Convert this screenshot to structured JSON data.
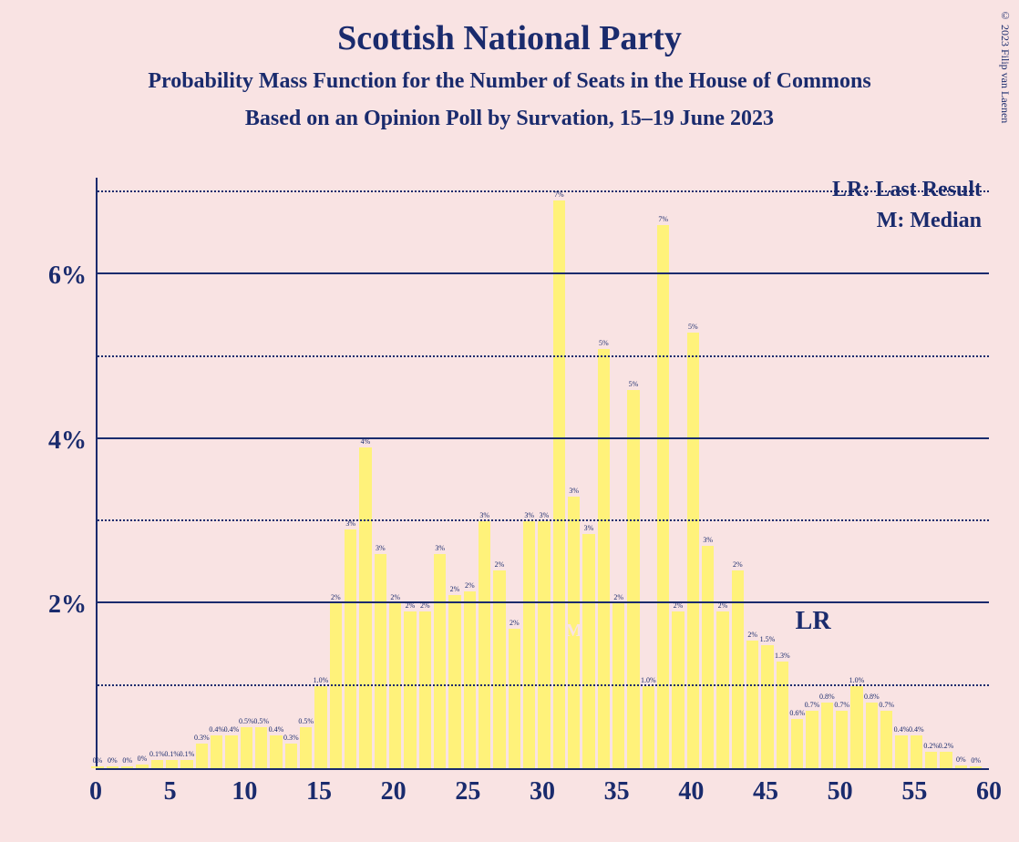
{
  "copyright": "© 2023 Filip van Laenen",
  "title": {
    "text": "Scottish National Party",
    "fontsize": 38
  },
  "subtitle": {
    "text": "Probability Mass Function for the Number of Seats in the House of Commons",
    "fontsize": 24
  },
  "subtitle2": {
    "text": "Based on an Opinion Poll by Survation, 15–19 June 2023",
    "fontsize": 24
  },
  "legend": {
    "lr": "LR: Last Result",
    "m": "M: Median",
    "fontsize": 24
  },
  "chart": {
    "type": "bar",
    "background_color": "#f9e3e3",
    "bar_color": "#fff27a",
    "axis_color": "#1a2b6d",
    "text_color": "#1a2b6d",
    "x": {
      "min": 0,
      "max": 60,
      "ticks": [
        0,
        5,
        10,
        15,
        20,
        25,
        30,
        35,
        40,
        45,
        50,
        55,
        60
      ],
      "tick_fontsize": 28
    },
    "y": {
      "min": 0,
      "max": 7.2,
      "solid_lines": [
        2,
        4,
        6
      ],
      "dotted_lines": [
        1,
        3,
        5,
        7
      ],
      "tick_labels": {
        "2": "2%",
        "4": "4%",
        "6": "6%"
      },
      "tick_fontsize": 28
    },
    "bar_width_ratio": 0.82,
    "bar_label_fontsize": 8,
    "bars": [
      {
        "x": 0,
        "v": 0.02,
        "label": "0%"
      },
      {
        "x": 1,
        "v": 0.02,
        "label": "0%"
      },
      {
        "x": 2,
        "v": 0.02,
        "label": "0%"
      },
      {
        "x": 3,
        "v": 0.05,
        "label": "0%"
      },
      {
        "x": 4,
        "v": 0.1,
        "label": "0.1%"
      },
      {
        "x": 5,
        "v": 0.1,
        "label": "0.1%"
      },
      {
        "x": 6,
        "v": 0.1,
        "label": "0.1%"
      },
      {
        "x": 7,
        "v": 0.3,
        "label": "0.3%"
      },
      {
        "x": 8,
        "v": 0.4,
        "label": "0.4%"
      },
      {
        "x": 9,
        "v": 0.4,
        "label": "0.4%"
      },
      {
        "x": 10,
        "v": 0.5,
        "label": "0.5%"
      },
      {
        "x": 11,
        "v": 0.5,
        "label": "0.5%"
      },
      {
        "x": 12,
        "v": 0.4,
        "label": "0.4%"
      },
      {
        "x": 13,
        "v": 0.3,
        "label": "0.3%"
      },
      {
        "x": 14,
        "v": 0.5,
        "label": "0.5%"
      },
      {
        "x": 15,
        "v": 1.0,
        "label": "1.0%"
      },
      {
        "x": 16,
        "v": 2.0,
        "label": "2%"
      },
      {
        "x": 17,
        "v": 2.9,
        "label": "3%"
      },
      {
        "x": 18,
        "v": 3.9,
        "label": "4%"
      },
      {
        "x": 19,
        "v": 2.6,
        "label": "3%"
      },
      {
        "x": 20,
        "v": 2.0,
        "label": "2%"
      },
      {
        "x": 21,
        "v": 1.9,
        "label": "2%"
      },
      {
        "x": 22,
        "v": 1.9,
        "label": "2%"
      },
      {
        "x": 23,
        "v": 2.6,
        "label": "3%"
      },
      {
        "x": 24,
        "v": 2.1,
        "label": "2%"
      },
      {
        "x": 25,
        "v": 2.15,
        "label": "2%"
      },
      {
        "x": 26,
        "v": 3.0,
        "label": "3%"
      },
      {
        "x": 27,
        "v": 2.4,
        "label": "2%"
      },
      {
        "x": 28,
        "v": 1.7,
        "label": "2%"
      },
      {
        "x": 29,
        "v": 3.0,
        "label": "3%"
      },
      {
        "x": 30,
        "v": 3.0,
        "label": "3%"
      },
      {
        "x": 31,
        "v": 6.9,
        "label": "7%"
      },
      {
        "x": 32,
        "v": 3.3,
        "label": "3%"
      },
      {
        "x": 33,
        "v": 2.85,
        "label": "3%"
      },
      {
        "x": 34,
        "v": 5.1,
        "label": "5%"
      },
      {
        "x": 35,
        "v": 2.0,
        "label": "2%"
      },
      {
        "x": 36,
        "v": 4.6,
        "label": "5%"
      },
      {
        "x": 37,
        "v": 1.0,
        "label": "1.0%"
      },
      {
        "x": 38,
        "v": 6.6,
        "label": "7%"
      },
      {
        "x": 39,
        "v": 1.9,
        "label": "2%"
      },
      {
        "x": 40,
        "v": 5.3,
        "label": "5%"
      },
      {
        "x": 41,
        "v": 2.7,
        "label": "3%"
      },
      {
        "x": 42,
        "v": 1.9,
        "label": "2%"
      },
      {
        "x": 43,
        "v": 2.4,
        "label": "2%"
      },
      {
        "x": 44,
        "v": 1.55,
        "label": "2%"
      },
      {
        "x": 45,
        "v": 1.5,
        "label": "1.5%"
      },
      {
        "x": 46,
        "v": 1.3,
        "label": "1.3%"
      },
      {
        "x": 47,
        "v": 0.6,
        "label": "0.6%"
      },
      {
        "x": 48,
        "v": 0.7,
        "label": "0.7%"
      },
      {
        "x": 49,
        "v": 0.8,
        "label": "0.8%"
      },
      {
        "x": 50,
        "v": 0.7,
        "label": "0.7%"
      },
      {
        "x": 51,
        "v": 1.0,
        "label": "1.0%"
      },
      {
        "x": 52,
        "v": 0.8,
        "label": "0.8%"
      },
      {
        "x": 53,
        "v": 0.7,
        "label": "0.7%"
      },
      {
        "x": 54,
        "v": 0.4,
        "label": "0.4%"
      },
      {
        "x": 55,
        "v": 0.4,
        "label": "0.4%"
      },
      {
        "x": 56,
        "v": 0.2,
        "label": "0.2%"
      },
      {
        "x": 57,
        "v": 0.2,
        "label": "0.2%"
      },
      {
        "x": 58,
        "v": 0.03,
        "label": "0%"
      },
      {
        "x": 59,
        "v": 0.02,
        "label": "0%"
      }
    ],
    "median": {
      "x": 32,
      "label": "M",
      "fontsize": 20
    },
    "last_result": {
      "x": 47,
      "label": "LR",
      "fontsize": 28
    }
  }
}
